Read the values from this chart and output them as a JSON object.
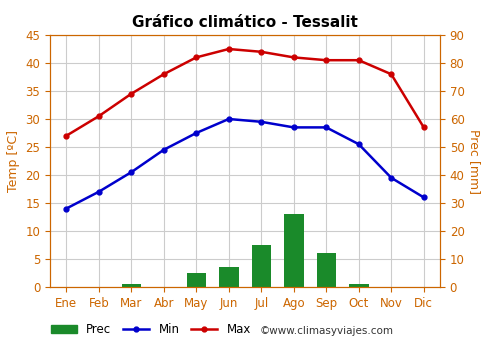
{
  "title": "Gráfico climático - Tessalit",
  "months": [
    "Ene",
    "Feb",
    "Mar",
    "Abr",
    "May",
    "Jun",
    "Jul",
    "Ago",
    "Sep",
    "Oct",
    "Nov",
    "Dic"
  ],
  "temp_max": [
    27,
    30.5,
    34.5,
    38,
    41,
    42.5,
    42,
    41,
    40.5,
    40.5,
    38,
    28.5
  ],
  "temp_min": [
    14,
    17,
    20.5,
    24.5,
    27.5,
    30,
    29.5,
    28.5,
    28.5,
    25.5,
    19.5,
    16
  ],
  "prec": [
    0,
    0,
    0.5,
    0,
    2.5,
    3.5,
    7.5,
    13,
    6,
    0.5,
    0,
    0
  ],
  "temp_ylim": [
    0,
    45
  ],
  "prec_ylim": [
    0,
    90
  ],
  "temp_yticks": [
    0,
    5,
    10,
    15,
    20,
    25,
    30,
    35,
    40,
    45
  ],
  "prec_yticks": [
    0,
    10,
    20,
    30,
    40,
    50,
    60,
    70,
    80,
    90
  ],
  "bar_color": "#1a8a2a",
  "line_min_color": "#0000cc",
  "line_max_color": "#cc0000",
  "bg_color": "#ffffff",
  "grid_color": "#cccccc",
  "tick_color": "#cc6600",
  "label_color": "#cc6600",
  "watermark": "©www.climasyviajes.com",
  "ylabel_left": "Temp [ºC]",
  "ylabel_right": "Prec [mm]",
  "title_fontsize": 11,
  "axis_fontsize": 8.5,
  "label_fontsize": 9
}
